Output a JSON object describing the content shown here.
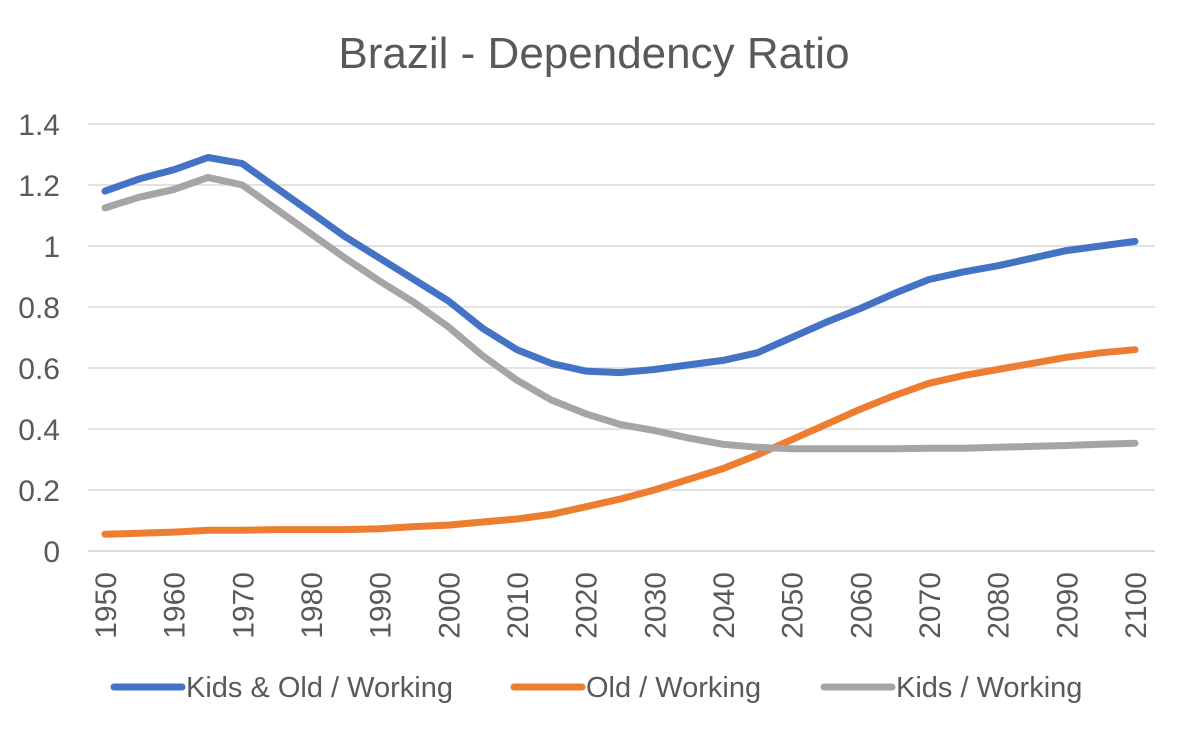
{
  "chart_data": {
    "type": "line",
    "title": "Brazil - Dependency Ratio",
    "xlabel": "",
    "ylabel": "",
    "ylim": [
      0,
      1.4
    ],
    "yticks": [
      0,
      0.2,
      0.4,
      0.6,
      0.8,
      1,
      1.2,
      1.4
    ],
    "ytick_labels": [
      "0",
      "0.2",
      "0.4",
      "0.6",
      "0.8",
      "1",
      "1.2",
      "1.4"
    ],
    "xtick_labels": [
      "1950",
      "1960",
      "1970",
      "1980",
      "1990",
      "2000",
      "2010",
      "2020",
      "2030",
      "2040",
      "2050",
      "2060",
      "2070",
      "2080",
      "2090",
      "2100"
    ],
    "x": [
      1950,
      1955,
      1960,
      1965,
      1970,
      1975,
      1980,
      1985,
      1990,
      1995,
      2000,
      2005,
      2010,
      2015,
      2020,
      2025,
      2030,
      2035,
      2040,
      2045,
      2050,
      2055,
      2060,
      2065,
      2070,
      2075,
      2080,
      2085,
      2090,
      2095,
      2100
    ],
    "grid": true,
    "legend_position": "bottom",
    "series": [
      {
        "name": "Kids & Old / Working",
        "color": "#4472c4",
        "values": [
          1.18,
          1.22,
          1.25,
          1.29,
          1.27,
          1.19,
          1.11,
          1.03,
          0.96,
          0.89,
          0.82,
          0.73,
          0.66,
          0.615,
          0.59,
          0.585,
          0.595,
          0.61,
          0.625,
          0.65,
          0.7,
          0.75,
          0.795,
          0.845,
          0.89,
          0.915,
          0.935,
          0.96,
          0.985,
          1.0,
          1.015
        ]
      },
      {
        "name": "Old / Working",
        "color": "#ed7d31",
        "values": [
          0.055,
          0.058,
          0.062,
          0.068,
          0.068,
          0.07,
          0.07,
          0.07,
          0.073,
          0.08,
          0.085,
          0.095,
          0.105,
          0.12,
          0.145,
          0.17,
          0.2,
          0.235,
          0.27,
          0.315,
          0.365,
          0.415,
          0.465,
          0.51,
          0.55,
          0.575,
          0.595,
          0.615,
          0.635,
          0.65,
          0.66
        ]
      },
      {
        "name": "Kids / Working",
        "color": "#a5a5a5",
        "values": [
          1.125,
          1.16,
          1.185,
          1.225,
          1.2,
          1.12,
          1.04,
          0.96,
          0.885,
          0.815,
          0.735,
          0.64,
          0.56,
          0.495,
          0.45,
          0.415,
          0.395,
          0.37,
          0.35,
          0.34,
          0.335,
          0.335,
          0.335,
          0.335,
          0.337,
          0.337,
          0.34,
          0.343,
          0.346,
          0.35,
          0.353
        ]
      }
    ]
  }
}
